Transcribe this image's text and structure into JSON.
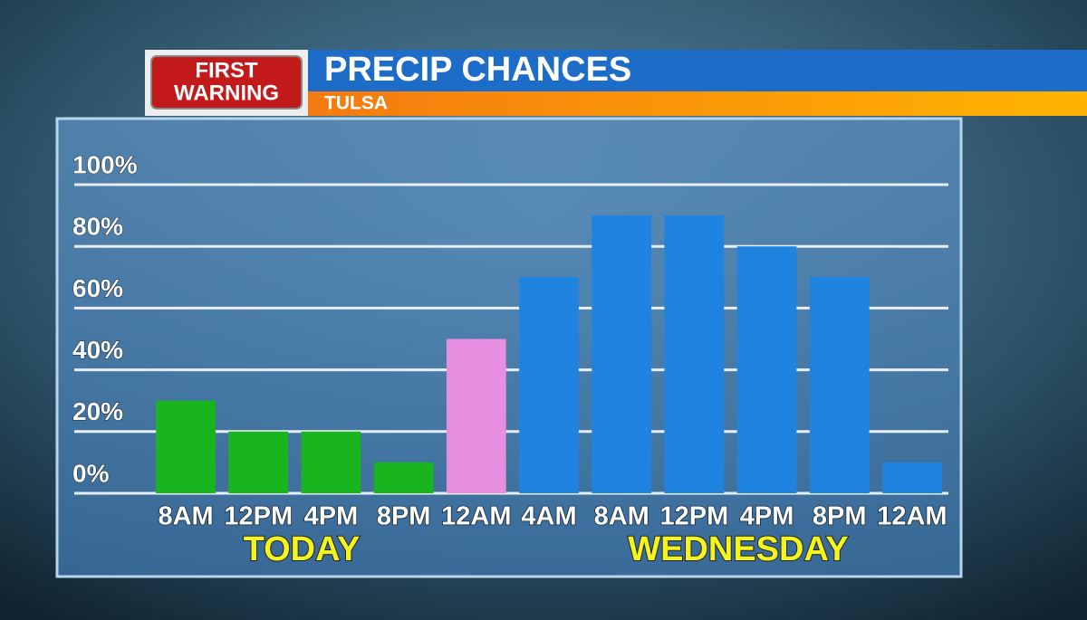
{
  "header": {
    "logo_line1": "FIRST",
    "logo_line2": "WARNING",
    "title": "PRECIP CHANCES",
    "subtitle": "TULSA"
  },
  "chart_data": {
    "type": "bar",
    "categories": [
      "8AM",
      "12PM",
      "4PM",
      "8PM",
      "12AM",
      "4AM",
      "8AM",
      "12PM",
      "4PM",
      "8PM",
      "12AM"
    ],
    "values": [
      30,
      20,
      20,
      10,
      50,
      70,
      90,
      90,
      80,
      70,
      10
    ],
    "colors": [
      "#19b51f",
      "#19b51f",
      "#19b51f",
      "#19b51f",
      "#e68fe0",
      "#1e84e0",
      "#1e84e0",
      "#1e84e0",
      "#1e84e0",
      "#1e84e0",
      "#1e84e0"
    ],
    "group_labels": [
      "TODAY",
      "WEDNESDAY"
    ],
    "ylim": [
      0,
      100
    ],
    "yticks": [
      {
        "value": 0,
        "label": "0%"
      },
      {
        "value": 20,
        "label": "20%"
      },
      {
        "value": 40,
        "label": "40%"
      },
      {
        "value": 60,
        "label": "60%"
      },
      {
        "value": 80,
        "label": "80%"
      },
      {
        "value": 100,
        "label": "100%"
      }
    ],
    "grid": true
  }
}
